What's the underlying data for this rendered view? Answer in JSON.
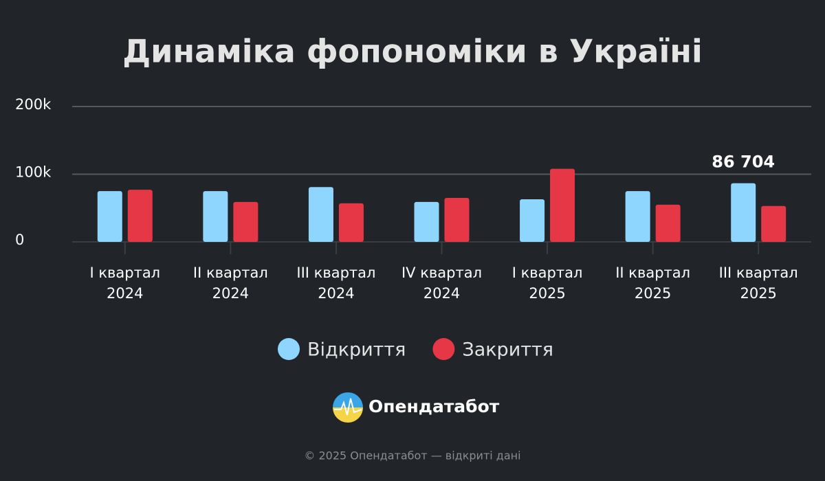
{
  "chart_data": {
    "type": "bar",
    "title": "Динаміка фопономіки в Україні",
    "categories": [
      "I квартал 2024",
      "II квартал 2024",
      "III квартал 2024",
      "IV квартал 2024",
      "I квартал 2025",
      "II квартал 2025",
      "III квартал 2025"
    ],
    "series": [
      {
        "name": "Відкриття",
        "color": "#8ed6fd",
        "values": [
          75000,
          75000,
          81000,
          59000,
          63000,
          75000,
          86704
        ],
        "value_labels": [
          null,
          null,
          null,
          null,
          null,
          null,
          "86 704"
        ]
      },
      {
        "name": "Закриття",
        "color": "#e63746",
        "values": [
          77000,
          59000,
          57000,
          65000,
          108000,
          55000,
          53000
        ]
      }
    ],
    "ylim": [
      0,
      200000
    ],
    "yticks": [
      0,
      {
        "value": 100000,
        "label": "100k"
      },
      {
        "value": 200000,
        "label": "200k"
      }
    ],
    "grid": true,
    "legend": "bottom",
    "brand": "Опендатабот",
    "footer": "© 2025 Опендатабот — відкриті дані"
  }
}
